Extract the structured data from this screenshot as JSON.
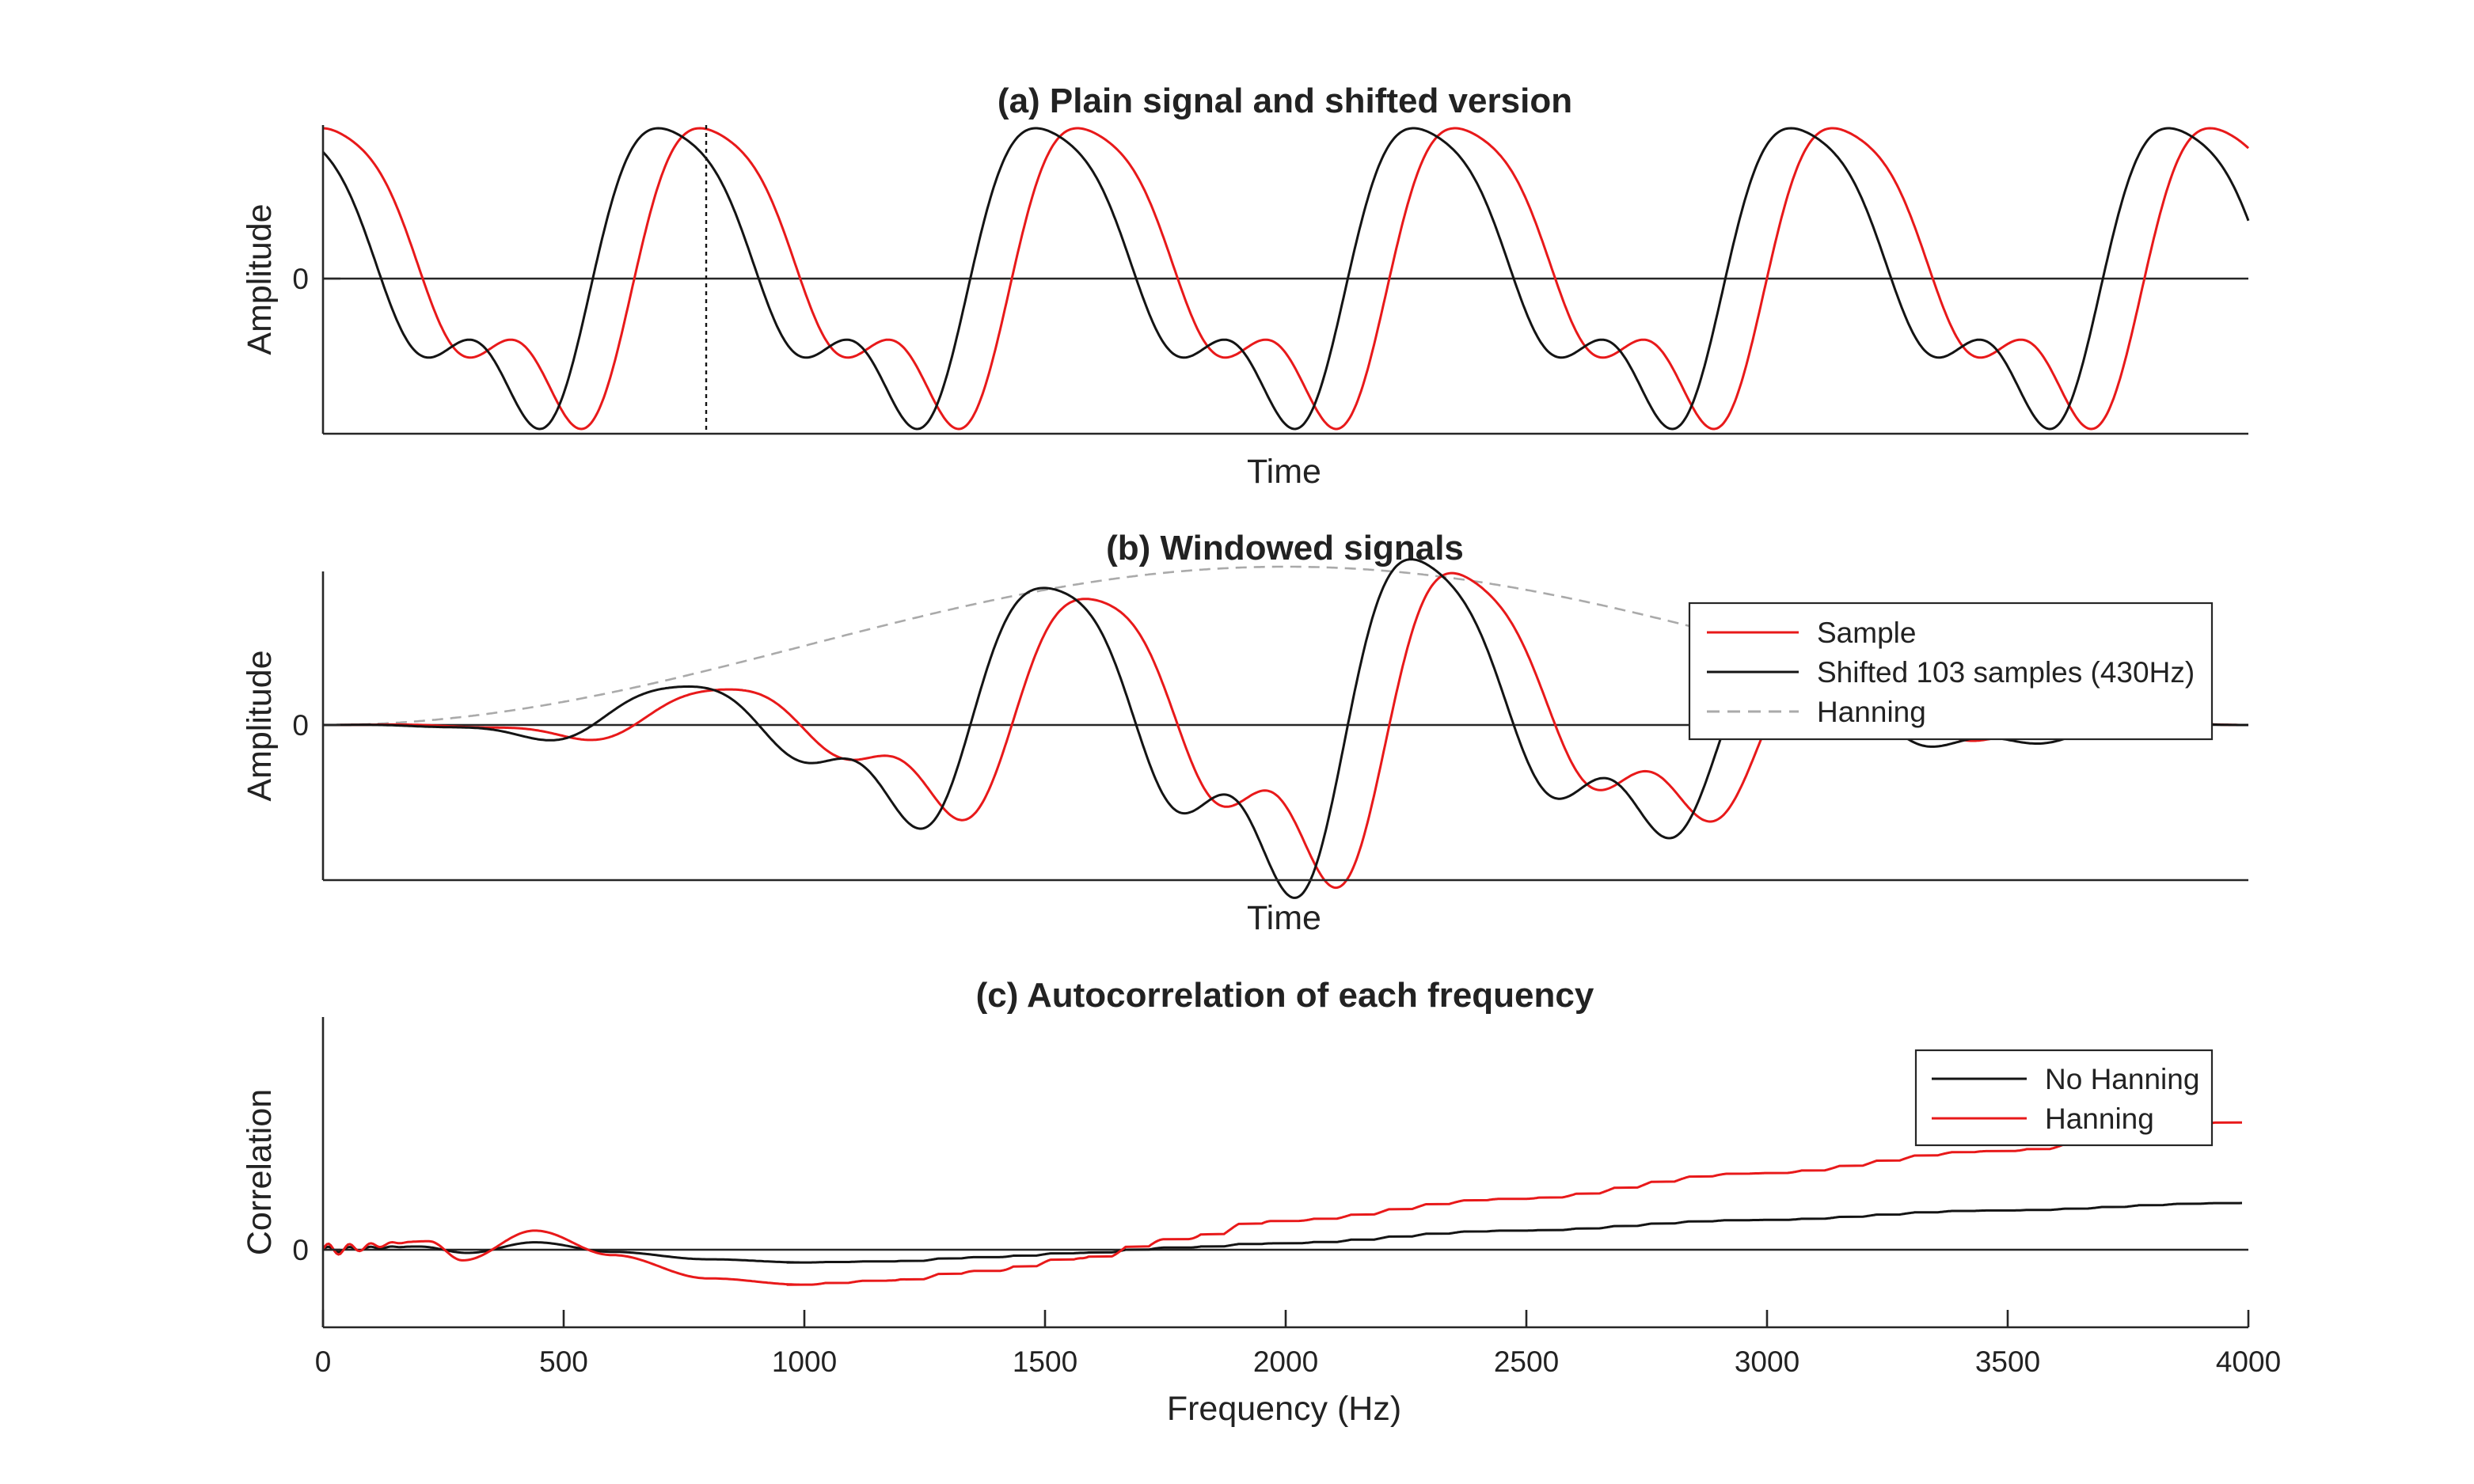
{
  "colors": {
    "sample": "#e8191a",
    "shifted": "#141414",
    "hanning_window": "#aaaaaa",
    "axis": "#262626"
  },
  "panel_a": {
    "title": "(a) Plain signal and shifted version",
    "xlabel": "Time",
    "ylabel": "Amplitude",
    "ytick": "0"
  },
  "panel_b": {
    "title": "(b) Windowed signals",
    "xlabel": "Time",
    "ylabel": "Amplitude",
    "ytick": "0",
    "legend": [
      "Sample",
      "Shifted 103 samples (430Hz)",
      "Hanning"
    ]
  },
  "panel_c": {
    "title": "(c) Autocorrelation of each frequency",
    "xlabel": "Frequency (Hz)",
    "ylabel": "Correlation",
    "ytick": "0",
    "xticks": [
      "0",
      "500",
      "1000",
      "1500",
      "2000",
      "2500",
      "3000",
      "3500",
      "4000"
    ],
    "legend": [
      "No Hanning",
      "Hanning"
    ]
  },
  "chart_data": [
    {
      "type": "line",
      "title": "(a) Plain signal and shifted version",
      "xlabel": "Time",
      "ylabel": "Amplitude",
      "ylim": [
        -1,
        1
      ],
      "series": [
        {
          "color": "#e8191a",
          "description": "periodic waveform, about 5.1 cycles across the window"
        },
        {
          "color": "#141414",
          "description": "same waveform shifted by 103 samples"
        }
      ],
      "marker": "vertical dotted line at the shift position"
    },
    {
      "type": "line",
      "title": "(b) Windowed signals",
      "xlabel": "Time",
      "ylabel": "Amplitude",
      "series": [
        {
          "name": "Sample",
          "color": "#e8191a"
        },
        {
          "name": "Shifted 103 samples (430Hz)",
          "color": "#141414"
        },
        {
          "name": "Hanning",
          "color": "#aaaaaa",
          "style": "dashed"
        }
      ],
      "legend_position": "top-right"
    },
    {
      "type": "line",
      "title": "(c) Autocorrelation of each frequency",
      "xlabel": "Frequency (Hz)",
      "ylabel": "Correlation",
      "xlim": [
        0,
        4000
      ],
      "series": [
        {
          "name": "No Hanning",
          "color": "#141414",
          "x": [
            0,
            200,
            300,
            440,
            600,
            800,
            1000,
            1200,
            1400,
            1600,
            1800,
            2000,
            2500,
            3000,
            3500,
            4000
          ],
          "y": [
            0,
            0.03,
            -0.03,
            0.07,
            -0.02,
            -0.09,
            -0.12,
            -0.11,
            -0.07,
            -0.03,
            0.02,
            0.06,
            0.18,
            0.28,
            0.37,
            0.44
          ]
        },
        {
          "name": "Hanning",
          "color": "#e8191a",
          "x": [
            0,
            220,
            290,
            440,
            600,
            800,
            1000,
            1200,
            1400,
            1600,
            1800,
            2000,
            2500,
            3000,
            3500,
            4000
          ],
          "y": [
            0,
            0.08,
            -0.1,
            0.18,
            -0.05,
            -0.27,
            -0.33,
            -0.29,
            -0.2,
            -0.08,
            0.1,
            0.27,
            0.48,
            0.72,
            0.93,
            1.2
          ]
        }
      ],
      "legend_position": "top-right"
    }
  ]
}
